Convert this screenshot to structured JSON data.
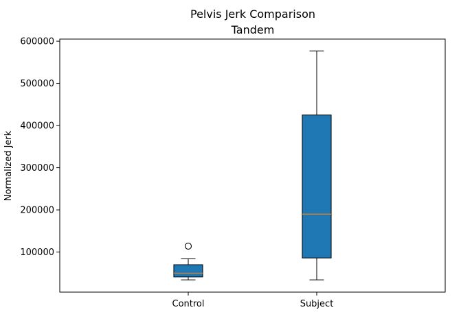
{
  "chart_data": {
    "type": "box",
    "title": "Pelvis Jerk Comparison",
    "subtitle": "Tandem",
    "ylabel": "Normalized Jerk",
    "xlabel": "",
    "categories": [
      "Control",
      "Subject"
    ],
    "ylim": [
      5000,
      605000
    ],
    "yticks": [
      100000,
      200000,
      300000,
      400000,
      500000,
      600000
    ],
    "ytick_labels": [
      "100000",
      "200000",
      "300000",
      "400000",
      "500000",
      "600000"
    ],
    "grid": false,
    "boxes": [
      {
        "label": "Control",
        "whisker_low": 34000,
        "q1": 41000,
        "median": 50000,
        "q3": 70000,
        "whisker_high": 84000,
        "outliers": [
          114000
        ]
      },
      {
        "label": "Subject",
        "whisker_low": 34000,
        "q1": 86000,
        "median": 190000,
        "q3": 425000,
        "whisker_high": 577000,
        "outliers": []
      }
    ],
    "colors": {
      "box_fill": "#1f77b4",
      "median": "#ff7f0e",
      "edge": "#000000"
    }
  }
}
